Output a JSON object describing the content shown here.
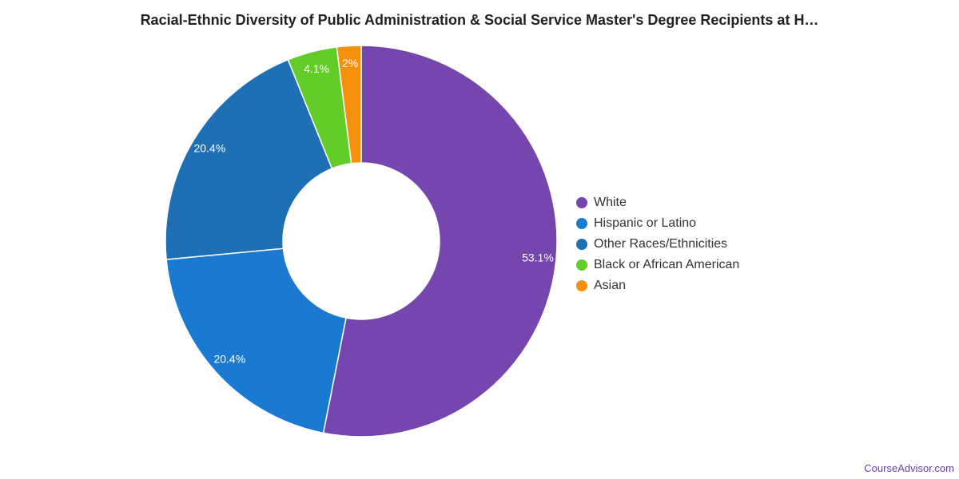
{
  "chart_data": {
    "type": "pie",
    "title": "Racial-Ethnic Diversity of Public Administration & Social Service Master's Degree Recipients at H…",
    "donut": true,
    "legend_position": "right",
    "slices": [
      {
        "label": "White",
        "value": 53.1,
        "value_label": "53.1%",
        "color": "#7446ae"
      },
      {
        "label": "Hispanic or Latino",
        "value": 20.4,
        "value_label": "20.4%",
        "color": "#1a7ad2"
      },
      {
        "label": "Other Races/Ethnicities",
        "value": 20.4,
        "value_label": "20.4%",
        "color": "#1f6fb4"
      },
      {
        "label": "Black or African American",
        "value": 4.1,
        "value_label": "4.1%",
        "color": "#62cc29"
      },
      {
        "label": "Asian",
        "value": 2.0,
        "value_label": "2%",
        "color": "#f5900c"
      }
    ]
  },
  "footer": {
    "credit": "CourseAdvisor.com"
  }
}
